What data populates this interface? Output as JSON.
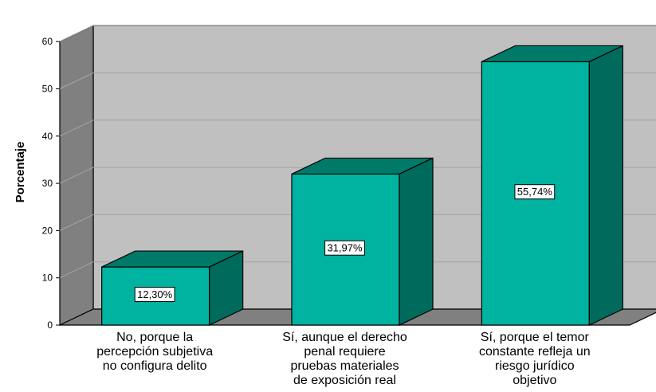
{
  "chart_data": {
    "type": "bar",
    "title": "",
    "xlabel": "",
    "ylabel": "Porcentaje",
    "ylim": [
      0,
      60
    ],
    "yticks": [
      0,
      10,
      20,
      30,
      40,
      50,
      60
    ],
    "grid": true,
    "style": "3d",
    "categories": [
      [
        "No, porque la",
        "percepción subjetiva",
        "no configura delito"
      ],
      [
        "Sí, aunque el derecho",
        "penal requiere",
        "pruebas materiales",
        "de exposición real"
      ],
      [
        "Sí, porque el temor",
        "constante refleja un",
        "riesgo jurídico",
        "objetivo"
      ]
    ],
    "values": [
      12.3,
      31.97,
      55.74
    ],
    "data_labels": [
      "12,30%",
      "31,97%",
      "55,74%"
    ]
  },
  "colors": {
    "bar_front": "#00B2A0",
    "bar_top": "#007A68",
    "bar_side": "#006B5C",
    "back_wall": "#C0C0C0",
    "side_wall": "#808080",
    "floor": "#808080",
    "grid": "#A4A4A4"
  }
}
